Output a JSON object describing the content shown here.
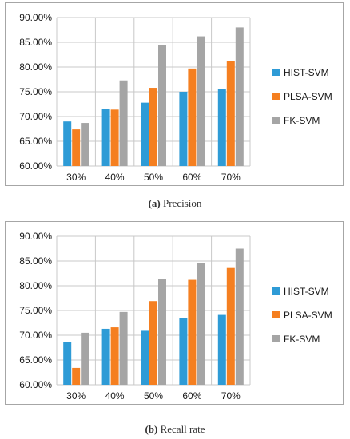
{
  "chart_data": [
    {
      "type": "bar",
      "caption_letter": "(a)",
      "caption_text": "Precision",
      "categories": [
        "30%",
        "40%",
        "50%",
        "60%",
        "70%"
      ],
      "series": [
        {
          "name": "HIST-SVM",
          "color": "#2e9bd6",
          "values": [
            69.0,
            71.5,
            72.8,
            75.0,
            75.6
          ]
        },
        {
          "name": "PLSA-SVM",
          "color": "#f57f20",
          "values": [
            67.4,
            71.4,
            75.8,
            79.7,
            81.2
          ]
        },
        {
          "name": "FK-SVM",
          "color": "#a5a5a5",
          "values": [
            68.7,
            77.3,
            84.4,
            86.2,
            88.0
          ]
        }
      ],
      "yticks": [
        "60.00%",
        "65.00%",
        "70.00%",
        "75.00%",
        "80.00%",
        "85.00%",
        "90.00%"
      ],
      "ylim": [
        60,
        90
      ],
      "grid": true,
      "legend": "right"
    },
    {
      "type": "bar",
      "caption_letter": "(b)",
      "caption_text": "Recall rate",
      "categories": [
        "30%",
        "40%",
        "50%",
        "60%",
        "70%"
      ],
      "series": [
        {
          "name": "HIST-SVM",
          "color": "#2e9bd6",
          "values": [
            68.7,
            71.3,
            70.9,
            73.4,
            74.1
          ]
        },
        {
          "name": "PLSA-SVM",
          "color": "#f57f20",
          "values": [
            63.4,
            71.6,
            76.9,
            81.2,
            83.6
          ]
        },
        {
          "name": "FK-SVM",
          "color": "#a5a5a5",
          "values": [
            70.5,
            74.7,
            81.3,
            84.6,
            87.5
          ]
        }
      ],
      "yticks": [
        "60.00%",
        "65.00%",
        "70.00%",
        "75.00%",
        "80.00%",
        "85.00%",
        "90.00%"
      ],
      "ylim": [
        60,
        90
      ],
      "grid": true,
      "legend": "right"
    }
  ]
}
